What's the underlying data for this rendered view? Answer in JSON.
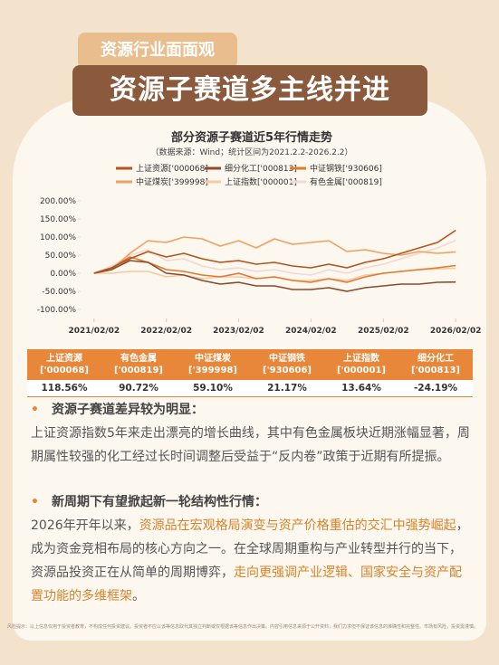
{
  "header": {
    "tag": "资源行业面面观",
    "title": "资源子赛道多主线并进"
  },
  "chart_data": {
    "type": "line",
    "title": "部分资源子赛道近5年行情走势",
    "subtitle": "（数据来源：Wind；统计区间为2021.2.2-2026.2.2）",
    "x": [
      "2021/02/02",
      "2021/05/02",
      "2021/08/02",
      "2021/11/02",
      "2022/02/02",
      "2022/05/02",
      "2022/08/02",
      "2022/11/02",
      "2023/02/02",
      "2023/05/02",
      "2023/08/02",
      "2023/11/02",
      "2024/02/02",
      "2024/05/02",
      "2024/08/02",
      "2024/11/02",
      "2025/02/02",
      "2025/05/02",
      "2025/08/02",
      "2025/11/02",
      "2026/02/02"
    ],
    "xlim": [
      "2020/12/10",
      "2026/04/20"
    ],
    "xticks": [
      "2021/02/02",
      "2022/02/02",
      "2023/02/02",
      "2024/02/02",
      "2025/02/02",
      "2026/02/02"
    ],
    "ylim": [
      -110,
      210
    ],
    "yticks": [
      {
        "value": 200,
        "label": "200.00%"
      },
      {
        "value": 150,
        "label": "150.00%"
      },
      {
        "value": 100,
        "label": "100.00%"
      },
      {
        "value": 50,
        "label": "50.00%"
      },
      {
        "value": 0,
        "label": "0.00%"
      },
      {
        "value": -50,
        "label": "-50.00%"
      },
      {
        "value": -100,
        "label": "-100.00%"
      }
    ],
    "series": [
      {
        "name": "上证资源['000068]",
        "color": "#b5531c",
        "values": [
          0,
          15,
          40,
          60,
          45,
          55,
          40,
          30,
          35,
          25,
          30,
          20,
          15,
          25,
          15,
          30,
          40,
          55,
          70,
          85,
          118.56
        ]
      },
      {
        "name": "细分化工['000813]",
        "color": "#8b4a2b",
        "values": [
          0,
          10,
          35,
          30,
          0,
          -5,
          -20,
          -30,
          -25,
          -35,
          -35,
          -45,
          -45,
          -40,
          -50,
          -40,
          -35,
          -30,
          -30,
          -25,
          -24.19
        ]
      },
      {
        "name": "中证钢铁['930606]",
        "color": "#e07a2e",
        "values": [
          0,
          15,
          45,
          30,
          10,
          5,
          -5,
          -10,
          0,
          -15,
          -10,
          -20,
          -25,
          -15,
          -25,
          -10,
          0,
          5,
          10,
          15,
          21.17
        ]
      },
      {
        "name": "中证煤炭['399998]",
        "color": "#f0a160",
        "values": [
          0,
          10,
          55,
          90,
          85,
          100,
          95,
          75,
          90,
          70,
          95,
          80,
          85,
          90,
          60,
          65,
          55,
          50,
          60,
          55,
          59.1
        ]
      },
      {
        "name": "上证指数['000001]",
        "color": "#f5c9a2",
        "values": [
          0,
          0,
          5,
          5,
          -10,
          -5,
          -15,
          -10,
          -10,
          -15,
          -10,
          -20,
          -20,
          -15,
          -20,
          -5,
          0,
          5,
          10,
          12,
          13.64
        ]
      },
      {
        "name": "有色金属['000819]",
        "color": "#f2d8d2",
        "values": [
          0,
          20,
          50,
          65,
          35,
          40,
          20,
          10,
          15,
          5,
          10,
          0,
          -5,
          10,
          0,
          15,
          25,
          40,
          55,
          70,
          90.72
        ]
      }
    ]
  },
  "table": {
    "columns": [
      [
        "上证资源",
        "['000068]"
      ],
      [
        "有色金属",
        "['000819]"
      ],
      [
        "中证煤炭",
        "['399998]"
      ],
      [
        "中证钢铁",
        "['930606]"
      ],
      [
        "上证指数",
        "['000001]"
      ],
      [
        "细分化工",
        "['000813]"
      ]
    ],
    "rows": [
      [
        "118.56%",
        "90.72%",
        "59.10%",
        "21.17%",
        "13.64%",
        "-24.19%"
      ]
    ]
  },
  "sections": [
    {
      "heading": "资源子赛道差异较为明显：",
      "body": [
        "上证资源指数5年来走出漂亮的增长曲线，其中有色金属板块近期涨幅显著，周期属性较强的化工经过长时间调整后受益于“反内卷”政策于近期有所提振。"
      ]
    },
    {
      "heading": "新周期下有望掀起新一轮结构性行情：",
      "body": [
        "2026年开年以来，",
        "资源品在宏观格局演变与资产价格重估的交汇中强势崛起",
        "，成为资金竞相布局的核心方向之一。在全球周期重构与产业转型并行的当下，资源品投资正在从简单的周期博弈，",
        "走向更强调产业逻辑、国家安全与资产配置功能的多维框架",
        "。"
      ]
    }
  ],
  "disclaimer": "风险提示：以上信息仅用于投资者教育，不构成任何投资建议。投资者不应以该等信息取代其独立判断或仅根据该等信息作出决策。内容引用信息来源于公开资料，我们力求但不保证该信息的准确性和完整性。市场有风险，投资需谨慎。"
}
